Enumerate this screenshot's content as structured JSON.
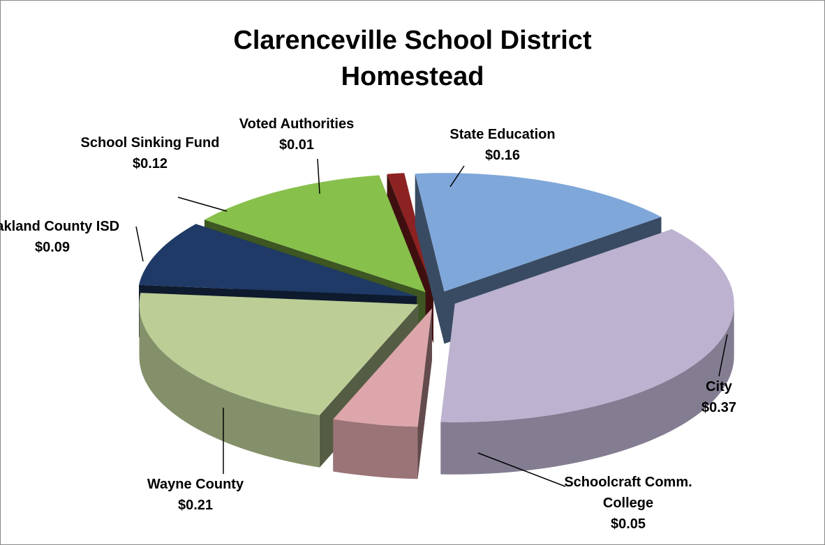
{
  "chart_data": {
    "type": "pie3d",
    "title": "Clarenceville School District Homestead",
    "categories": [
      "State Education",
      "City",
      "Schoolcraft Comm. College",
      "Wayne County",
      "Oakland County ISD",
      "School Sinking Fund",
      "Voted Authorities"
    ],
    "values": [
      0.16,
      0.37,
      0.05,
      0.21,
      0.09,
      0.12,
      0.01
    ],
    "value_labels": [
      "$0.16",
      "$0.37",
      "$0.05",
      "$0.21",
      "$0.09",
      "$0.12",
      "$0.01"
    ],
    "colors": [
      "#7fa7d9",
      "#bdb3d1",
      "#dca6aa",
      "#bccd96",
      "#1f3a66",
      "#88c04c",
      "#8c2222"
    ]
  }
}
